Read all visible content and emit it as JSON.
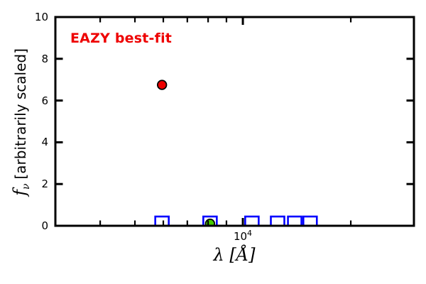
{
  "annotation": {
    "text": "EAZY best-fit",
    "color": "#ee0000"
  },
  "axes": {
    "x": {
      "scale": "log",
      "min": 3000,
      "max": 30000,
      "major_ticks": [
        10000
      ],
      "minor_ticks": [
        4000,
        5000,
        6000,
        7000,
        8000,
        9000,
        20000
      ],
      "major_tick_label": {
        "base": "10",
        "exp": "4"
      },
      "label": "λ [Å]"
    },
    "y": {
      "min": 0,
      "max": 10,
      "major_ticks": [
        0,
        2,
        4,
        6,
        8,
        10
      ],
      "label_f": "f",
      "label_sub": "ν",
      "label_rest": "[arbitrarily scaled]"
    }
  },
  "colors": {
    "axis": "#000000",
    "background": "#ffffff",
    "square_blue": "#0000ff",
    "circle_red": "#ee0000",
    "circle_green": "#44cc00"
  },
  "chart_data": {
    "type": "scatter",
    "title": "",
    "xlabel": "λ [Å]",
    "ylabel": "f_ν [arbitrarily scaled]",
    "xscale": "log",
    "xlim": [
      3000,
      30000
    ],
    "ylim": [
      0,
      10
    ],
    "grid": false,
    "legend": "none",
    "annotation": "EAZY best-fit",
    "series": [
      {
        "name": "observed photometry",
        "marker": "open-square",
        "color": "#0000ff",
        "points": [
          {
            "x": 5950,
            "y": 0.12
          },
          {
            "x": 8100,
            "y": 0.12
          },
          {
            "x": 10600,
            "y": 0.12
          },
          {
            "x": 12500,
            "y": 0.12
          },
          {
            "x": 13950,
            "y": 0.12
          },
          {
            "x": 15400,
            "y": 0.12
          }
        ]
      },
      {
        "name": "best-fit flux green point",
        "marker": "filled-circle",
        "color": "#44cc00",
        "points": [
          {
            "x": 8100,
            "y": 0.1
          }
        ]
      },
      {
        "name": "best-fit flux red point",
        "marker": "filled-circle",
        "color": "#ee0000",
        "points": [
          {
            "x": 5950,
            "y": 6.75
          }
        ]
      }
    ]
  }
}
